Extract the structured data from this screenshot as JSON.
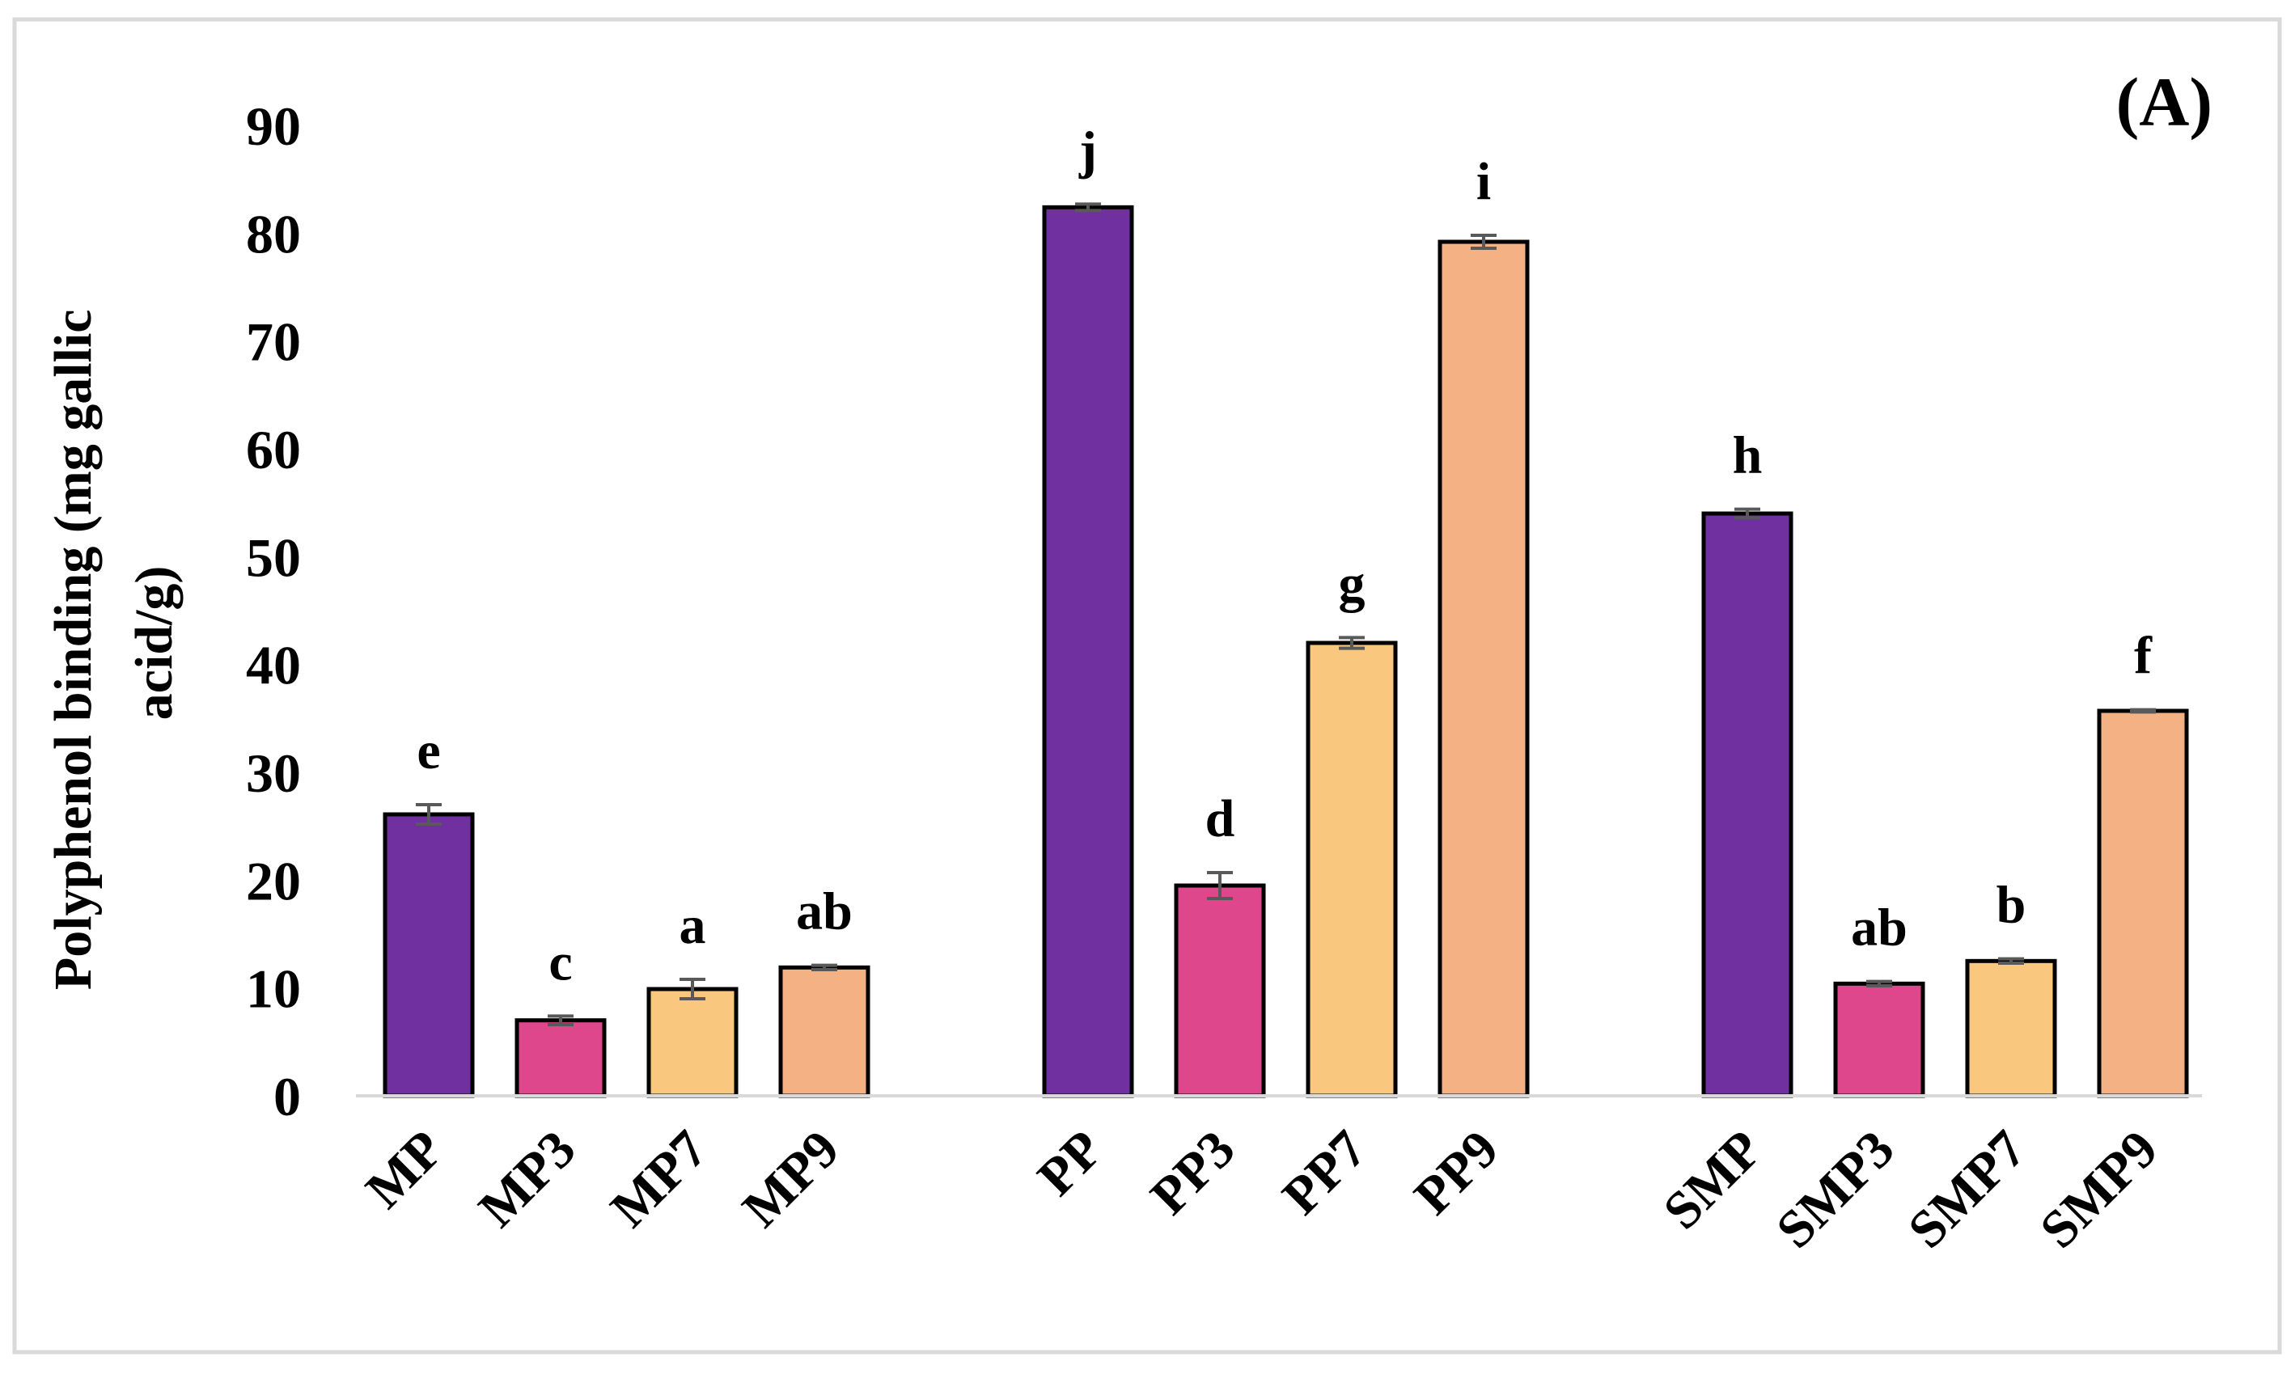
{
  "chart_data": {
    "type": "bar",
    "panel_label": "(A)",
    "title": "",
    "xlabel": "",
    "ylabel_lines": [
      "Polyphenol binding (mg gallic",
      "acid/g)"
    ],
    "ylim": [
      0,
      90
    ],
    "yticks": [
      0,
      10,
      20,
      30,
      40,
      50,
      60,
      70,
      80,
      90
    ],
    "grid": false,
    "legend": "none",
    "categories": [
      "MP",
      "MP3",
      "MP7",
      "MP9",
      "PP",
      "PP3",
      "PP7",
      "PP9",
      "SMP",
      "SMP3",
      "SMP7",
      "SMP9"
    ],
    "groups": [
      {
        "categories": [
          "MP",
          "MP3",
          "MP7",
          "MP9"
        ]
      },
      {
        "categories": [
          "PP",
          "PP3",
          "PP7",
          "PP9"
        ]
      },
      {
        "categories": [
          "SMP",
          "SMP3",
          "SMP7",
          "SMP9"
        ]
      }
    ],
    "values": [
      26.1,
      7.0,
      9.9,
      11.9,
      82.4,
      19.5,
      42.0,
      79.2,
      54.0,
      10.4,
      12.5,
      35.7
    ],
    "errors": [
      0.9,
      0.4,
      0.9,
      0.2,
      0.3,
      1.2,
      0.5,
      0.6,
      0.4,
      0.2,
      0.2,
      0.1
    ],
    "letters": [
      "e",
      "c",
      "a",
      "ab",
      "j",
      "d",
      "g",
      "i",
      "h",
      "ab",
      "b",
      "f"
    ],
    "colors": [
      "#7030A0",
      "#DE478B",
      "#F9C77E",
      "#F4B183",
      "#7030A0",
      "#DE478B",
      "#F9C77E",
      "#F4B183",
      "#7030A0",
      "#DE478B",
      "#F9C77E",
      "#F4B183"
    ]
  }
}
